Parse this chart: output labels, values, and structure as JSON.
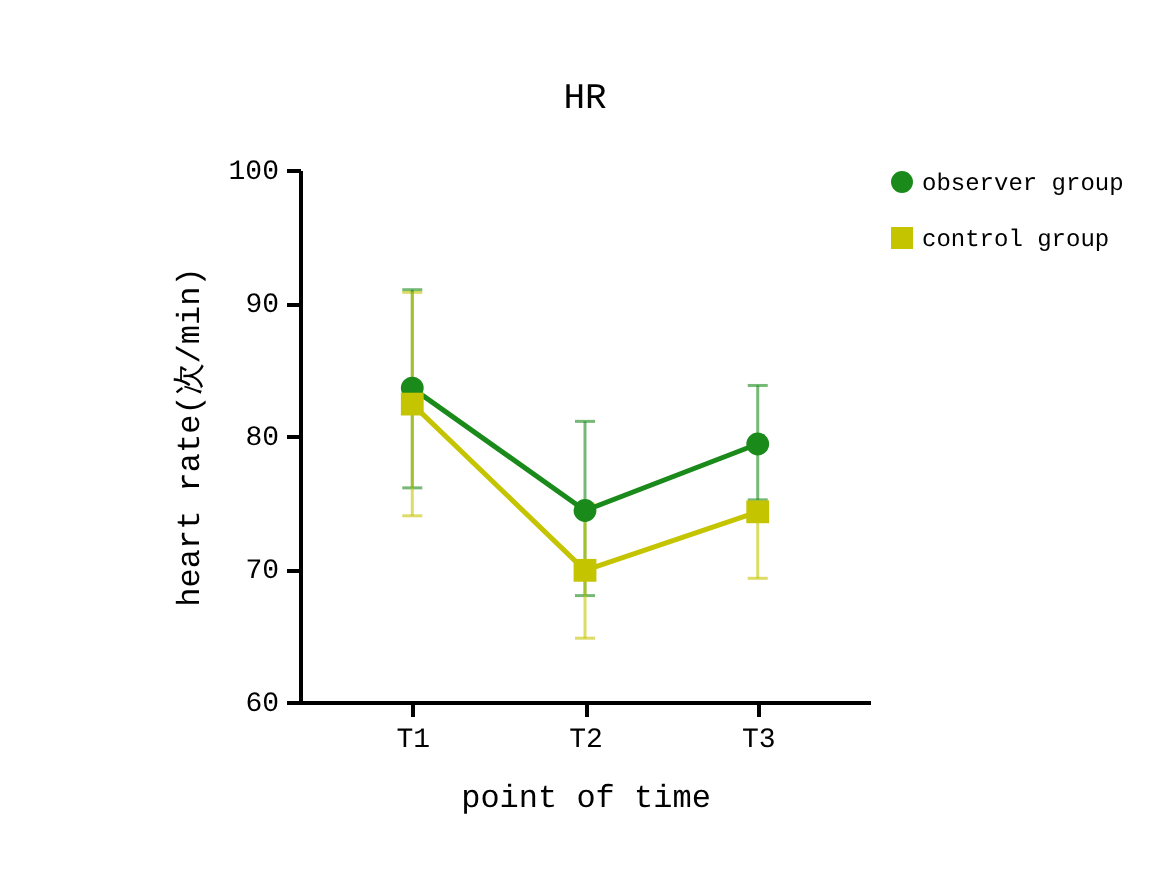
{
  "chart_data": {
    "type": "line",
    "title": "HR",
    "xlabel": "point of time",
    "ylabel": "heart rate(次/min)",
    "categories": [
      "T1",
      "T2",
      "T3"
    ],
    "series": [
      {
        "name": "observer group",
        "color": "#1a8a1a",
        "marker": "circle",
        "values": [
          83.6,
          74.4,
          79.4
        ],
        "errors": [
          [
            76.1,
            91
          ],
          [
            68,
            81.1
          ],
          [
            75.2,
            83.8
          ]
        ]
      },
      {
        "name": "control group",
        "color": "#c4c400",
        "marker": "square",
        "values": [
          82.4,
          69.9,
          74.3
        ],
        "errors": [
          [
            74,
            90.8
          ],
          [
            64.8,
            74.9
          ],
          [
            69.3,
            74.3
          ]
        ]
      }
    ],
    "ylim": [
      60,
      100
    ],
    "yticks": [
      60,
      70,
      80,
      90,
      100
    ],
    "grid": false,
    "legend": "top right"
  }
}
